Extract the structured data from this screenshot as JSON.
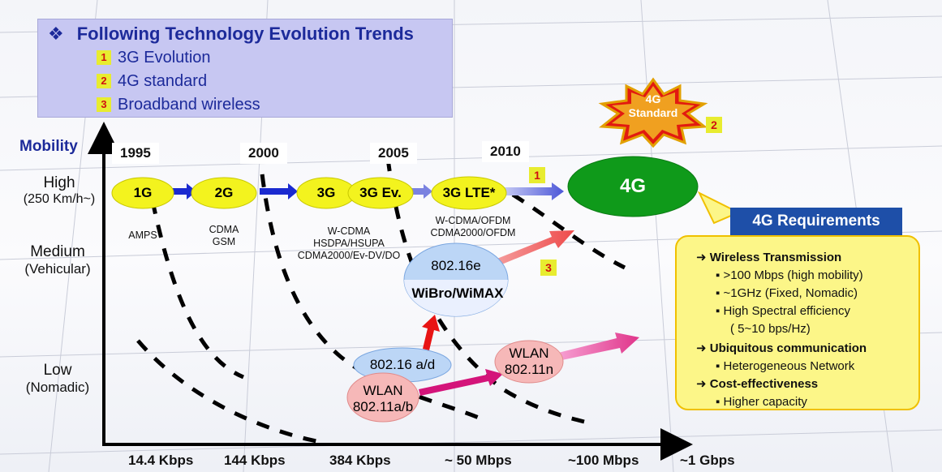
{
  "legend": {
    "title": "Following Technology Evolution Trends",
    "items": [
      {
        "num": "1",
        "text": "3G Evolution"
      },
      {
        "num": "2",
        "text": "4G standard"
      },
      {
        "num": "3",
        "text": "Broadband wireless"
      }
    ]
  },
  "axes": {
    "y_title": "Mobility",
    "y_levels": [
      {
        "label": "High",
        "sub": "(250 Km/h~)"
      },
      {
        "label": "Medium",
        "sub": "(Vehicular)"
      },
      {
        "label": "Low",
        "sub": "(Nomadic)"
      }
    ],
    "x_ticks": [
      "14.4 Kbps",
      "144 Kbps",
      "384 Kbps",
      "~ 50 Mbps",
      "~100 Mbps",
      "~1 Gbps"
    ]
  },
  "years": [
    "1995",
    "2000",
    "2005",
    "2010"
  ],
  "generations": {
    "g1": "1G",
    "g2": "2G",
    "g3": "3G",
    "g3ev": "3G Ev.",
    "g3lte": "3G LTE*",
    "g4": "4G"
  },
  "tech_labels": {
    "amps": "AMPS",
    "cdma_gsm": "CDMA\nGSM",
    "wcdma": "W-CDMA\nHSDPA/HSUPA\nCDMA2000/Ev-DV/DO",
    "ofdm": "W-CDMA/OFDM\nCDMA2000/OFDM"
  },
  "nodes": {
    "wimax_top": "802.16e",
    "wimax_bottom": "WiBro/WiMAX",
    "ieee80216ad": "802.16 a/d",
    "wlan_ab_1": "WLAN",
    "wlan_ab_2": "802.11a/b",
    "wlan_n_1": "WLAN",
    "wlan_n_2": "802.11n"
  },
  "standard_burst": {
    "line1": "4G",
    "line2": "Standard",
    "num": "2"
  },
  "badges": {
    "lte_num": "1",
    "wimax_num": "3"
  },
  "requirements": {
    "title": "4G Requirements",
    "sections": [
      {
        "heading": "Wireless Transmission",
        "items": [
          ">100 Mbps (high mobility)",
          "~1GHz (Fixed, Nomadic)",
          "High Spectral efficiency",
          "( 5~10 bps/Hz)"
        ]
      },
      {
        "heading": "Ubiquitous communication",
        "items": [
          "Heterogeneous Network"
        ]
      },
      {
        "heading": "Cost-effectiveness",
        "items": [
          "Higher capacity"
        ]
      }
    ]
  },
  "colors": {
    "accent": "#1c2a9a",
    "yellow_node": "#f3f31e",
    "green_node": "#0f9a1a",
    "req_fill": "#fcf688"
  }
}
